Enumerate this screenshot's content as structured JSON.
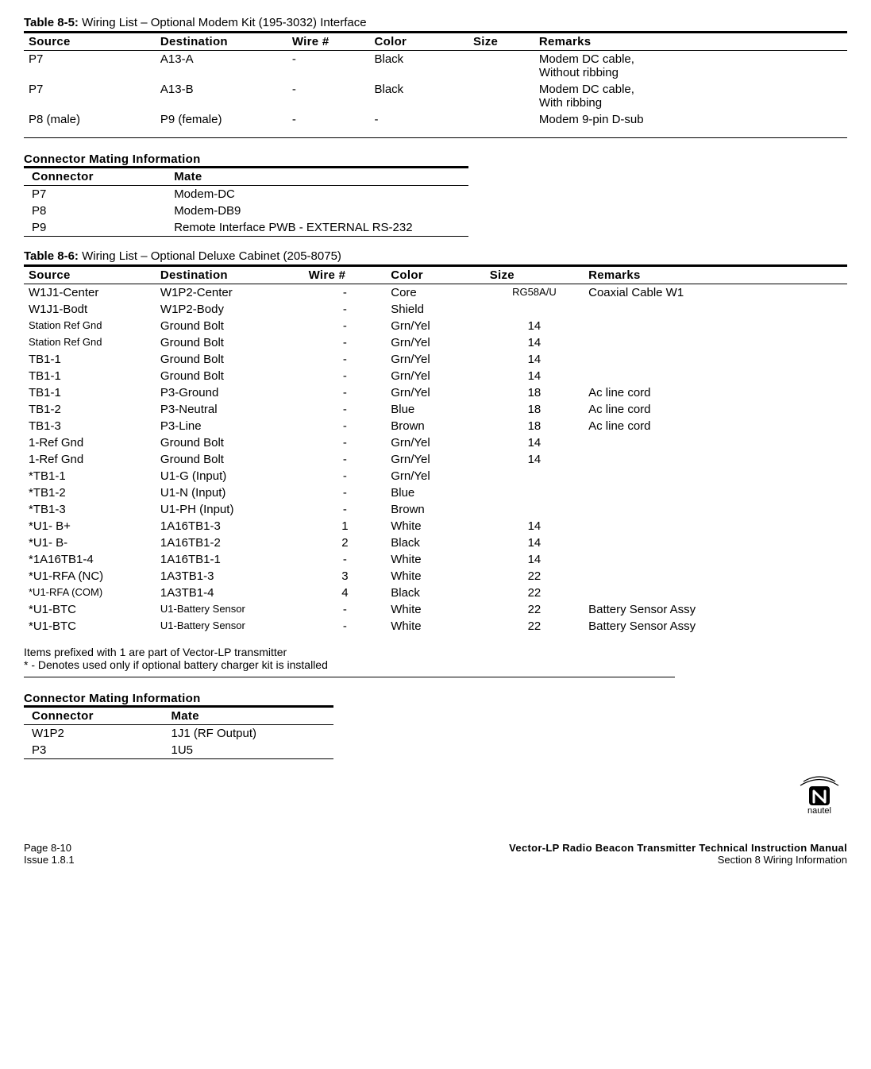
{
  "table85": {
    "title_bold": "Table 8-5:",
    "title_rest": " Wiring List – Optional Modem Kit (195-3032) Interface",
    "headers": [
      "Source",
      "Destination",
      "Wire #",
      "Color",
      "Size",
      "Remarks"
    ],
    "rows": [
      [
        "P7",
        "A13-A",
        "-",
        "Black",
        "",
        "Modem DC cable,\nWithout ribbing"
      ],
      [
        "P7",
        "A13-B",
        "-",
        "Black",
        "",
        "Modem DC cable,\nWith ribbing"
      ],
      [
        "P8 (male)",
        "P9 (female)",
        "-",
        "-",
        "",
        "Modem 9-pin D-sub"
      ]
    ]
  },
  "mate1": {
    "heading": "Connector Mating Information",
    "headers": [
      "Connector",
      "Mate"
    ],
    "rows": [
      [
        "P7",
        "Modem-DC"
      ],
      [
        "P8",
        "Modem-DB9"
      ],
      [
        "P9",
        "Remote Interface PWB - EXTERNAL RS-232"
      ]
    ]
  },
  "table86": {
    "title_bold": "Table 8-6:",
    "title_rest": " Wiring List – Optional Deluxe Cabinet (205-8075)",
    "headers": [
      "Source",
      "Destination",
      "Wire #",
      "Color",
      "Size",
      "Remarks"
    ],
    "rows": [
      [
        "W1J1-Center",
        "W1P2-Center",
        "-",
        "Core",
        "RG58A/U",
        "Coaxial Cable W1"
      ],
      [
        "W1J1-Bodt",
        "W1P2-Body",
        "-",
        "Shield",
        "",
        ""
      ],
      [
        "Station Ref Gnd",
        "Ground Bolt",
        "-",
        "Grn/Yel",
        "14",
        ""
      ],
      [
        "Station Ref Gnd",
        "Ground Bolt",
        "-",
        "Grn/Yel",
        "14",
        ""
      ],
      [
        "TB1-1",
        "Ground Bolt",
        "-",
        "Grn/Yel",
        "14",
        ""
      ],
      [
        "TB1-1",
        "Ground Bolt",
        "-",
        "Grn/Yel",
        "14",
        ""
      ],
      [
        "TB1-1",
        "P3-Ground",
        "-",
        "Grn/Yel",
        "18",
        "Ac line cord"
      ],
      [
        "TB1-2",
        "P3-Neutral",
        "-",
        "Blue",
        "18",
        "Ac line cord"
      ],
      [
        "TB1-3",
        "P3-Line",
        "-",
        "Brown",
        "18",
        "Ac line cord"
      ],
      [
        "1-Ref Gnd",
        "Ground Bolt",
        "-",
        "Grn/Yel",
        "14",
        ""
      ],
      [
        "1-Ref Gnd",
        "Ground Bolt",
        "-",
        "Grn/Yel",
        "14",
        ""
      ],
      [
        "*TB1-1",
        "U1-G (Input)",
        "-",
        "Grn/Yel",
        "",
        ""
      ],
      [
        "*TB1-2",
        "U1-N (Input)",
        "-",
        "Blue",
        "",
        ""
      ],
      [
        "*TB1-3",
        "U1-PH (Input)",
        "-",
        "Brown",
        "",
        ""
      ],
      [
        "*U1- B+",
        "1A16TB1-3",
        "1",
        "White",
        "14",
        ""
      ],
      [
        "*U1- B-",
        "1A16TB1-2",
        "2",
        "Black",
        "14",
        ""
      ],
      [
        "*1A16TB1-4",
        "1A16TB1-1",
        "-",
        "White",
        "14",
        ""
      ],
      [
        "*U1-RFA (NC)",
        "1A3TB1-3",
        "3",
        "White",
        "22",
        ""
      ],
      [
        "*U1-RFA (COM)",
        "1A3TB1-4",
        "4",
        "Black",
        "22",
        ""
      ],
      [
        "*U1-BTC",
        "U1-Battery Sensor",
        "-",
        "White",
        "22",
        "Battery Sensor Assy"
      ],
      [
        "*U1-BTC",
        "U1-Battery Sensor",
        "-",
        "White",
        "22",
        "Battery Sensor Assy"
      ]
    ],
    "small_src_rows": [
      2,
      3,
      18
    ],
    "small_dest_rows": [
      19,
      20
    ],
    "small_size_rows": [
      0
    ],
    "notes": [
      "Items prefixed with 1 are part of Vector-LP transmitter",
      "* - Denotes used only if optional battery charger kit is installed"
    ]
  },
  "mate2": {
    "heading": "Connector Mating Information",
    "headers": [
      "Connector",
      "Mate"
    ],
    "rows": [
      [
        "W1P2",
        "1J1 (RF Output)"
      ],
      [
        "P3",
        "1U5"
      ]
    ]
  },
  "footer": {
    "left1": "Page 8-10",
    "left2": "Issue 1.8.1",
    "right1": "Vector-LP Radio Beacon Transmitter Technical Instruction Manual",
    "right2": "Section 8 Wiring Information",
    "logo_text": "nautel"
  },
  "col_widths_85": [
    "16%",
    "16%",
    "10%",
    "12%",
    "8%",
    "38%"
  ],
  "col_widths_86": [
    "16%",
    "18%",
    "10%",
    "12%",
    "12%",
    "32%"
  ]
}
